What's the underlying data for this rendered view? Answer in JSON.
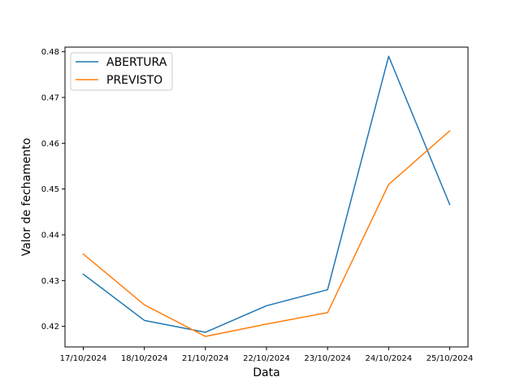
{
  "chart_data": {
    "type": "line",
    "title": "",
    "xlabel": "Data",
    "ylabel": "Valor de fechamento",
    "categories": [
      "17/10/2024",
      "18/10/2024",
      "21/10/2024",
      "22/10/2024",
      "23/10/2024",
      "24/10/2024",
      "25/10/2024"
    ],
    "series": [
      {
        "name": "ABERTURA",
        "color": "#1f77b4",
        "values": [
          0.4314,
          0.4213,
          0.4187,
          0.4245,
          0.428,
          0.479,
          0.4466
        ]
      },
      {
        "name": "PREVISTO",
        "color": "#ff7f0e",
        "values": [
          0.4358,
          0.4247,
          0.4178,
          0.4205,
          0.423,
          0.451,
          0.4627
        ]
      }
    ],
    "ylim": [
      0.4155,
      0.481
    ],
    "yticks": [
      0.42,
      0.43,
      0.44,
      0.45,
      0.46,
      0.47,
      0.48
    ],
    "ytick_labels": [
      "0.42",
      "0.43",
      "0.44",
      "0.45",
      "0.46",
      "0.47",
      "0.48"
    ],
    "grid": false,
    "legend_position": "top-left"
  }
}
